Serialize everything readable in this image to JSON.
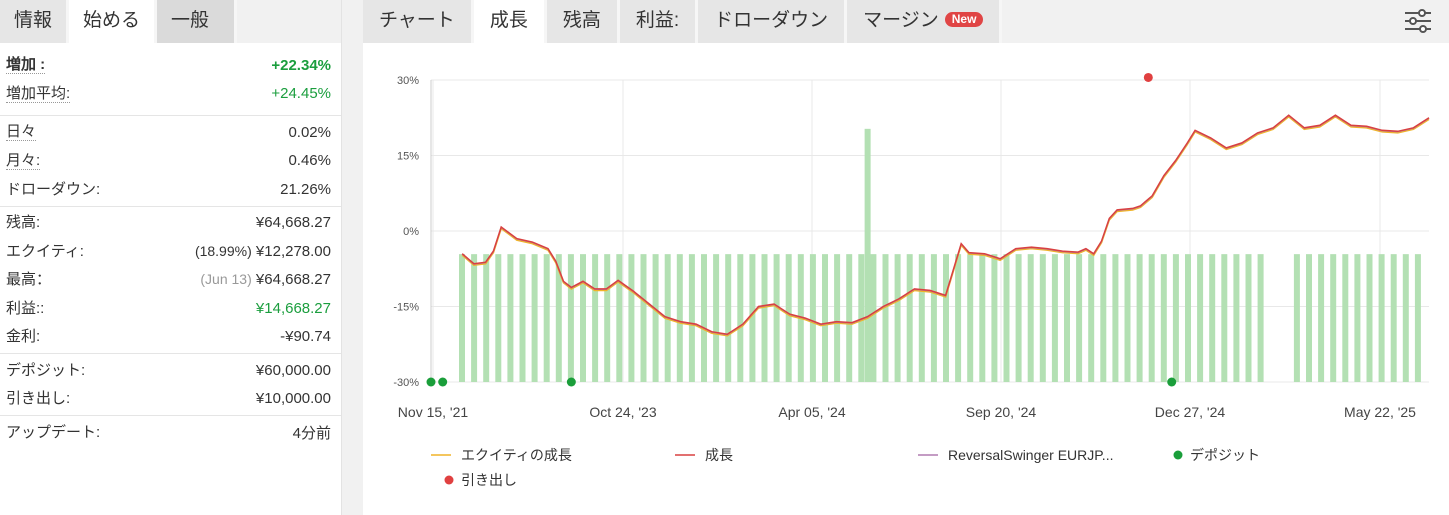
{
  "left_tabs": [
    "情報",
    "始める",
    "一般"
  ],
  "stats": {
    "gain_label": "増加 :",
    "gain_value": "+22.34%",
    "avg_gain_label": "増加平均:",
    "avg_gain_value": "+24.45%",
    "daily_label": "日々",
    "daily_value": "0.02%",
    "monthly_label": "月々:",
    "monthly_value": "0.46%",
    "drawdown_label": "ドローダウン:",
    "drawdown_value": "21.26%",
    "balance_label": "残高:",
    "balance_value": "¥64,668.27",
    "equity_label": "エクイティ:",
    "equity_pct": "(18.99%)",
    "equity_value": "¥12,278.00",
    "highest_label": "最高：",
    "highest_date": "(Jun 13)",
    "highest_value": "¥64,668.27",
    "profit_label": "利益::",
    "profit_value": "¥14,668.27",
    "interest_label": "金利:",
    "interest_value": "-¥90.74",
    "deposits_label": "デポジット:",
    "deposits_value": "¥60,000.00",
    "withdrawals_label": "引き出し:",
    "withdrawals_value": "¥10,000.00",
    "updated_label": "アップデート:",
    "updated_value": "4分前"
  },
  "main_tabs": [
    "チャート",
    "成長",
    "残高",
    "利益:",
    "ドローダウン",
    "マージン"
  ],
  "new_badge": "New",
  "icons": {
    "settings": "sliders-icon"
  },
  "colors": {
    "equity": "#f0b429",
    "growth": "#d94040",
    "system": "#b07cb0",
    "deposit": "#1a9e3a",
    "withdrawal": "#e04040",
    "bars": "#b3e0b3"
  },
  "chart_data": {
    "type": "line",
    "ylim": [
      -30,
      30
    ],
    "ytick_labels": [
      "30%",
      "15%",
      "0%",
      "-15%",
      "-30%"
    ],
    "x_labels": [
      "Nov 15, '21",
      "Oct 24, '23",
      "Apr 05, '24",
      "Sep 20, '24",
      "Dec 27, '24",
      "May 22, '25"
    ],
    "legend": [
      "エクイティの成長",
      "成長",
      "ReversalSwinger EURJP...",
      "デポジット",
      "引き出し"
    ],
    "growth": [
      [
        0.04,
        -4.5
      ],
      [
        0.055,
        -6.5
      ],
      [
        0.07,
        -6.2
      ],
      [
        0.08,
        -4
      ],
      [
        0.09,
        0.8
      ],
      [
        0.11,
        -1.5
      ],
      [
        0.13,
        -2.2
      ],
      [
        0.15,
        -3.5
      ],
      [
        0.16,
        -6
      ],
      [
        0.17,
        -10
      ],
      [
        0.18,
        -11.2
      ],
      [
        0.195,
        -10
      ],
      [
        0.21,
        -11.5
      ],
      [
        0.225,
        -11.5
      ],
      [
        0.24,
        -9.8
      ],
      [
        0.26,
        -12
      ],
      [
        0.28,
        -14.5
      ],
      [
        0.3,
        -17
      ],
      [
        0.32,
        -18
      ],
      [
        0.34,
        -18.5
      ],
      [
        0.36,
        -20
      ],
      [
        0.38,
        -20.5
      ],
      [
        0.4,
        -18.5
      ],
      [
        0.42,
        -15
      ],
      [
        0.44,
        -14.5
      ],
      [
        0.46,
        -16.5
      ],
      [
        0.48,
        -17.3
      ],
      [
        0.5,
        -18.5
      ],
      [
        0.52,
        -18
      ],
      [
        0.54,
        -18.2
      ],
      [
        0.56,
        -17
      ],
      [
        0.58,
        -15
      ],
      [
        0.6,
        -13.5
      ],
      [
        0.62,
        -11.5
      ],
      [
        0.64,
        -11.8
      ],
      [
        0.66,
        -12.8
      ],
      [
        0.68,
        -2.5
      ],
      [
        0.69,
        -4.3
      ],
      [
        0.71,
        -4.5
      ],
      [
        0.73,
        -5.5
      ],
      [
        0.75,
        -3.5
      ],
      [
        0.77,
        -3.2
      ],
      [
        0.79,
        -3.5
      ],
      [
        0.81,
        -4
      ],
      [
        0.83,
        -4.2
      ],
      [
        0.84,
        -3.5
      ],
      [
        0.85,
        -4.5
      ],
      [
        0.86,
        -2
      ],
      [
        0.87,
        2.5
      ],
      [
        0.88,
        4.2
      ],
      [
        0.9,
        4.5
      ],
      [
        0.91,
        5
      ],
      [
        0.925,
        7
      ],
      [
        0.94,
        11
      ],
      [
        0.955,
        14
      ],
      [
        0.97,
        17.5
      ],
      [
        0.98,
        20
      ],
      [
        1.0,
        18.5
      ],
      [
        1.02,
        16.5
      ],
      [
        1.04,
        17.5
      ],
      [
        1.06,
        19.5
      ],
      [
        1.08,
        20.5
      ],
      [
        1.1,
        23
      ],
      [
        1.12,
        20.5
      ],
      [
        1.14,
        21
      ],
      [
        1.16,
        23
      ],
      [
        1.18,
        21
      ],
      [
        1.2,
        20.8
      ],
      [
        1.22,
        20
      ],
      [
        1.24,
        19.8
      ],
      [
        1.26,
        20.5
      ],
      [
        1.28,
        22.5
      ]
    ],
    "daily_bars_top": -4.6,
    "spike": {
      "x": 0.56,
      "value": 20.3
    },
    "deposits_x": [
      0.0,
      0.015,
      0.18,
      0.95
    ],
    "withdrawal": {
      "x": 0.92,
      "value": 30.5
    }
  }
}
